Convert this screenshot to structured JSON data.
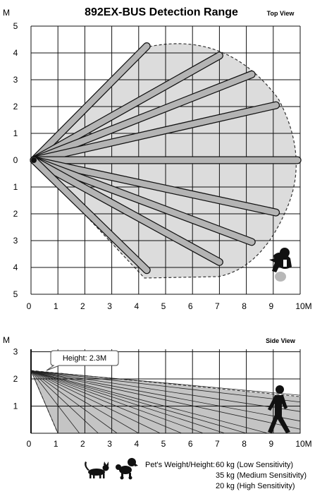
{
  "title": "892EX-BUS Detection Range",
  "top_view": {
    "label": "Top View",
    "axis_unit_y": "M",
    "axis_unit_x": "10M",
    "y_ticks": [
      "5",
      "4",
      "3",
      "2",
      "1",
      "0",
      "1",
      "2",
      "3",
      "4",
      "5"
    ],
    "x_ticks": [
      "0",
      "1",
      "2",
      "3",
      "4",
      "5",
      "6",
      "7",
      "8",
      "9"
    ],
    "beam_ends": [
      [
        4.3,
        4.25
      ],
      [
        7,
        3.9
      ],
      [
        8.2,
        3.2
      ],
      [
        9.1,
        2.05
      ],
      [
        9.9,
        0
      ],
      [
        9.1,
        -1.95
      ],
      [
        8.2,
        -3.05
      ],
      [
        7,
        -3.8
      ],
      [
        4.3,
        -4.1
      ]
    ]
  },
  "side_view": {
    "label": "Side View",
    "axis_unit_y": "M",
    "axis_unit_x": "10M",
    "y_ticks": [
      "3",
      "2",
      "1"
    ],
    "x_ticks": [
      "0",
      "1",
      "2",
      "3",
      "4",
      "5",
      "6",
      "7",
      "8",
      "9"
    ],
    "height_callout": "Height: 2.3M",
    "mount_height_m": 2.3
  },
  "pet_info": {
    "label": "Pet's Weight/Height:",
    "line1": "60 kg (Low Sensitivity)",
    "line2": "35 kg (Medium Sensitivity)",
    "line3": "20 kg (High Sensitivity)"
  },
  "icons": [
    "cat-icon",
    "poodle-icon",
    "walking-person-icon",
    "crawling-child-icon"
  ]
}
